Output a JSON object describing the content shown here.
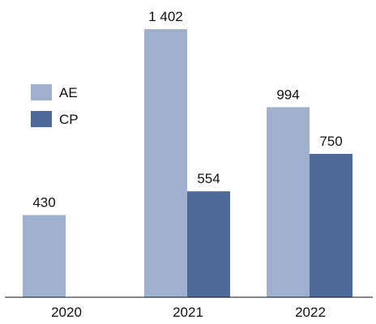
{
  "chart_data": {
    "type": "bar",
    "categories": [
      "2020",
      "2021",
      "2022"
    ],
    "series": [
      {
        "name": "AE",
        "color": "#9fb1cf",
        "values": [
          430,
          1402,
          994
        ],
        "labels": [
          "430",
          "1 402",
          "994"
        ]
      },
      {
        "name": "CP",
        "color": "#4d6a99",
        "values": [
          null,
          554,
          750
        ],
        "labels": [
          "",
          "554",
          "750"
        ]
      }
    ],
    "ylim": [
      0,
      1402
    ],
    "legend": "left",
    "grid": false
  }
}
